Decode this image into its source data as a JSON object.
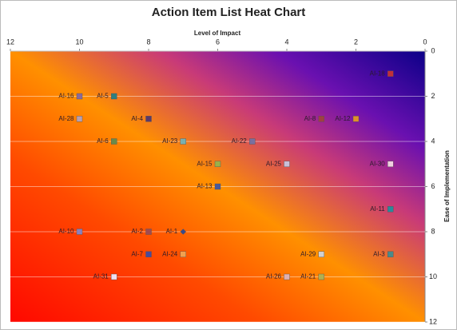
{
  "chart_data": {
    "type": "scatter",
    "title": "Action Item List Heat Chart",
    "x_label": "Level of Impact",
    "y_label": "Ease of Implementation",
    "xlim": [
      12,
      0
    ],
    "ylim": [
      12,
      0
    ],
    "xticks": [
      12,
      10,
      8,
      6,
      4,
      2,
      0
    ],
    "yticks": [
      0,
      2,
      4,
      6,
      8,
      10,
      12
    ],
    "grid": true,
    "labels": [
      "AI-18",
      "AI-16",
      "AI-5",
      "AI-28",
      "AI-4",
      "AI-8",
      "AI-12",
      "AI-6",
      "AI-23",
      "AI-22",
      "AI-15",
      "AI-25",
      "AI-30",
      "AI-13",
      "AI-11",
      "AI-10",
      "AI-2",
      "AI-1",
      "AI-7",
      "AI-24",
      "AI-29",
      "AI-3",
      "AI-31",
      "AI-26",
      "AI-21"
    ],
    "x": [
      1,
      10,
      9,
      10,
      8,
      3,
      2,
      9,
      7,
      5,
      6,
      4,
      1,
      6,
      1,
      10,
      8,
      7,
      8,
      7,
      3,
      1,
      9,
      4,
      3
    ],
    "y": [
      1,
      2,
      2,
      3,
      3,
      3,
      3,
      4,
      4,
      4,
      5,
      5,
      5,
      6,
      7,
      8,
      8,
      8,
      9,
      9,
      9,
      9,
      10,
      10,
      10
    ],
    "colors": [
      "#c0303a",
      "#8a6a9a",
      "#2e7f7f",
      "#b8a0b0",
      "#5a3a6a",
      "#a04040",
      "#e0902a",
      "#6a8a4a",
      "#7ab0b0",
      "#7a70a0",
      "#9ab04a",
      "#c8c0d8",
      "#f0d0e0",
      "#4a5a9a",
      "#2a8a9a",
      "#8a80c0",
      "#a04a50",
      "#3a4a8a",
      "#4a4a9a",
      "#f0a050",
      "#d0d0d0",
      "#4a8a8a",
      "#f0e0f0",
      "#e0b0b0",
      "#b0b050"
    ],
    "markers": [
      "square",
      "square",
      "square",
      "square",
      "square",
      "square",
      "square",
      "square",
      "square",
      "square",
      "square",
      "square",
      "square",
      "square",
      "square",
      "square",
      "square",
      "diamond",
      "square",
      "square",
      "square",
      "square",
      "square",
      "square",
      "square"
    ]
  }
}
